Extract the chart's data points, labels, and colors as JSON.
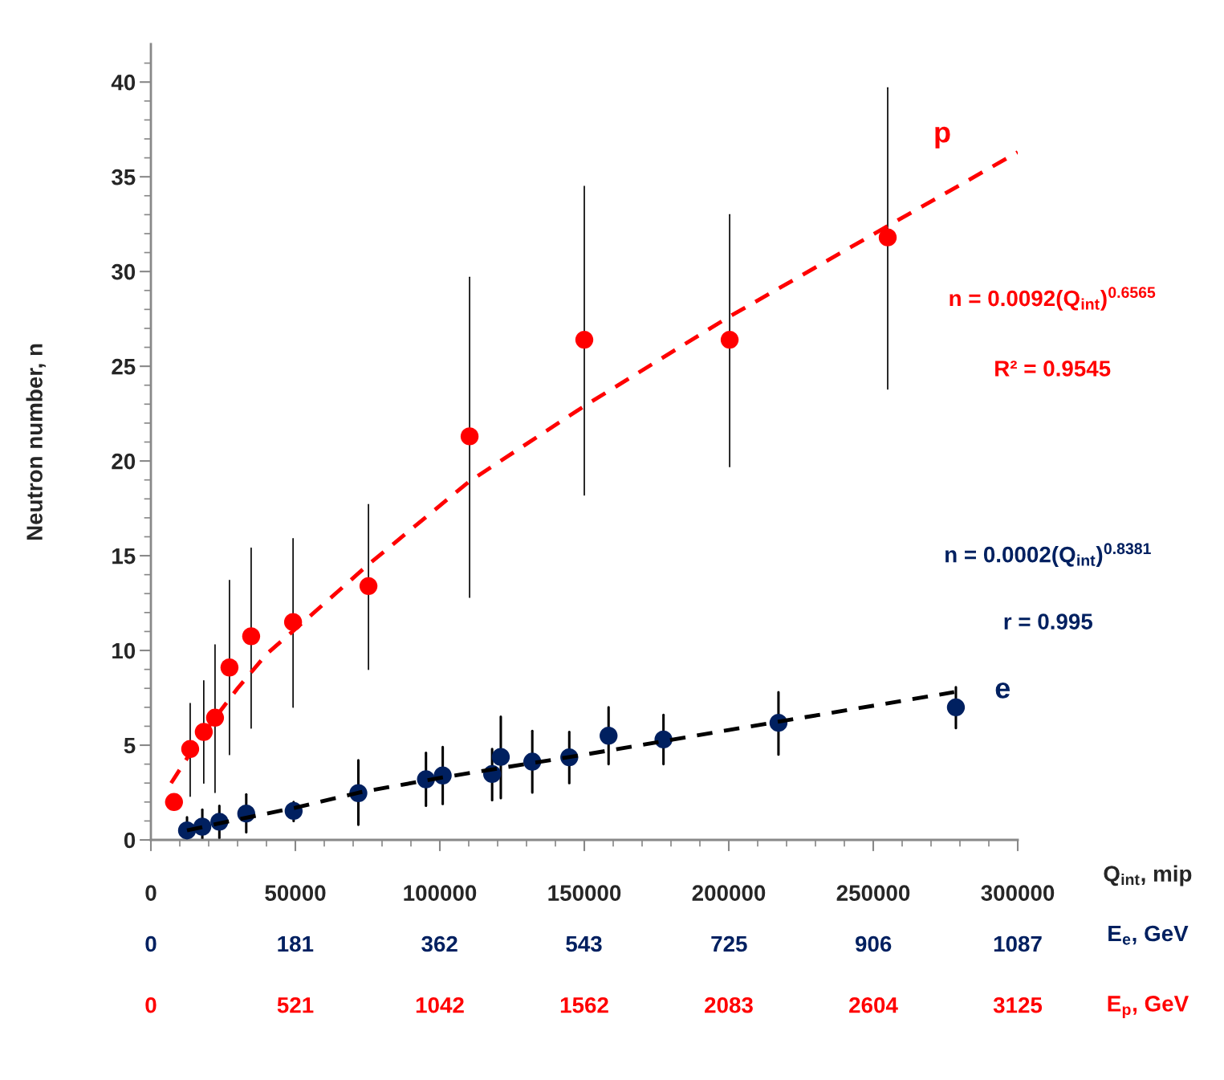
{
  "chart_data": {
    "type": "scatter",
    "ylabel": "Neutron number, n",
    "xlabel": "Q$_{int}$, mip",
    "x2label": "E$_{e}$, GeV",
    "xlim": [
      0,
      300000
    ],
    "ylim": [
      0,
      42
    ],
    "xticks": [
      0,
      {
        "value": 10000,
        "label": null
      },
      {
        "value": 20000,
        "label": null
      },
      {
        "value": 30000,
        "label": null
      },
      {
        "value": 40000,
        "label": null
      },
      50000,
      {
        "value": 60000,
        "label": null
      },
      {
        "value": 70000,
        "label": null
      },
      {
        "value": 80000,
        "label": null
      },
      {
        "value": 90000,
        "label": null
      },
      100000,
      {
        "value": 110000,
        "label": null
      },
      {
        "value": 120000,
        "label": null
      },
      {
        "value": 130000,
        "label": null
      },
      {
        "value": 140000,
        "label": null
      },
      150000,
      {
        "value": 160000,
        "label": null
      },
      {
        "value": 170000,
        "label": null
      },
      {
        "value": 180000,
        "label": null
      },
      {
        "value": 190000,
        "label": null
      },
      200000,
      {
        "value": 210000,
        "label": null
      },
      {
        "value": 220000,
        "label": null
      },
      {
        "value": 230000,
        "label": null
      },
      {
        "value": 240000,
        "label": null
      },
      250000,
      {
        "value": 260000,
        "label": null
      },
      {
        "value": 270000,
        "label": null
      },
      {
        "value": 280000,
        "label": null
      },
      {
        "value": 290000,
        "label": null
      },
      300000
    ],
    "yticks": [
      0,
      {
        "value": 1,
        "label": null
      },
      {
        "value": 2,
        "label": null
      },
      {
        "value": 3,
        "label": null
      },
      {
        "value": 4,
        "label": null
      },
      5,
      {
        "value": 6,
        "label": null
      },
      {
        "value": 7,
        "label": null
      },
      {
        "value": 8,
        "label": null
      },
      {
        "value": 9,
        "label": null
      },
      10,
      {
        "value": 11,
        "label": null
      },
      {
        "value": 12,
        "label": null
      },
      {
        "value": 13,
        "label": null
      },
      {
        "value": 14,
        "label": null
      },
      15,
      {
        "value": 16,
        "label": null
      },
      {
        "value": 17,
        "label": null
      },
      {
        "value": 18,
        "label": null
      },
      {
        "value": 19,
        "label": null
      },
      20,
      {
        "value": 21,
        "label": null
      },
      {
        "value": 22,
        "label": null
      },
      {
        "value": 23,
        "label": null
      },
      {
        "value": 24,
        "label": null
      },
      25,
      {
        "value": 26,
        "label": null
      },
      {
        "value": 27,
        "label": null
      },
      {
        "value": 28,
        "label": null
      },
      {
        "value": 29,
        "label": null
      },
      30,
      {
        "value": 31,
        "label": null
      },
      {
        "value": 32,
        "label": null
      },
      {
        "value": 33,
        "label": null
      },
      {
        "value": 34,
        "label": null
      },
      35,
      {
        "value": 36,
        "label": null
      },
      {
        "value": 37,
        "label": null
      },
      {
        "value": 38,
        "label": null
      },
      {
        "value": 39,
        "label": null
      },
      40,
      {
        "value": 41,
        "label": null
      }
    ],
    "x2lim": [
      0,
      1087
    ],
    "x2ticks": [
      0,
      181,
      362,
      543,
      725,
      906,
      1087
    ],
    "grid": false,
    "legend": false,
    "series": [
      {
        "name": "p",
        "marker": "circle",
        "color": "#ff0000",
        "x": [
          8000,
          13600,
          18300,
          22200,
          27200,
          34700,
          49200,
          75300,
          110300,
          150000,
          200300,
          255000
        ],
        "values": [
          2.0,
          4.8,
          5.7,
          6.45,
          9.1,
          10.75,
          11.5,
          13.4,
          21.3,
          26.4,
          26.4,
          31.8
        ],
        "errors": [
          null,
          [
            2.3,
            7.2
          ],
          [
            3.0,
            8.4
          ],
          [
            2.5,
            10.3
          ],
          [
            4.5,
            13.7
          ],
          [
            5.9,
            15.4
          ],
          [
            7.0,
            15.9
          ],
          [
            9.0,
            17.7
          ],
          [
            12.8,
            29.7
          ],
          [
            18.2,
            34.5
          ],
          [
            19.7,
            33.0
          ],
          [
            23.8,
            39.7
          ]
        ]
      },
      {
        "type": "line",
        "line_style": "dashed",
        "marker": "none",
        "color": "#ff0000",
        "x": [
          7000,
          15000,
          22000,
          30000,
          40000,
          52000,
          75000,
          110000,
          150000,
          200000,
          255000,
          300000
        ],
        "values": [
          3.0,
          4.9,
          6.4,
          8.0,
          9.8,
          11.4,
          14.5,
          18.9,
          22.9,
          27.6,
          32.4,
          36.3
        ]
      },
      {
        "name": "e",
        "marker": "circle",
        "color": "#002060",
        "x": [
          12500,
          17800,
          23700,
          33000,
          49400,
          71800,
          95200,
          101000,
          118100,
          121100,
          132000,
          144800,
          158400,
          177400,
          217200,
          278600
        ],
        "values": [
          0.5,
          0.7,
          0.96,
          1.39,
          1.53,
          2.47,
          3.2,
          3.4,
          3.48,
          4.38,
          4.13,
          4.36,
          5.5,
          5.3,
          6.18,
          7.0
        ],
        "errors": [
          [
            0,
            1.2
          ],
          [
            0,
            1.6
          ],
          [
            0.1,
            1.8
          ],
          [
            0.4,
            2.4
          ],
          [
            1.0,
            2.0
          ],
          [
            0.8,
            4.2
          ],
          [
            1.8,
            4.6
          ],
          [
            1.9,
            4.9
          ],
          [
            2.1,
            4.8
          ],
          [
            2.2,
            6.5
          ],
          [
            2.5,
            5.75
          ],
          [
            3.0,
            5.7
          ],
          [
            4.0,
            7.0
          ],
          [
            4.0,
            6.6
          ],
          [
            4.5,
            7.8
          ],
          [
            5.9,
            8.06
          ]
        ]
      },
      {
        "type": "line",
        "line_style": "dashed",
        "marker": "none",
        "color": "#000000",
        "x": [
          12500,
          25000,
          50000,
          72000,
          101000,
          150000,
          200000,
          278000
        ],
        "values": [
          0.5,
          0.92,
          1.7,
          2.5,
          3.3,
          4.5,
          5.8,
          7.8
        ]
      }
    ],
    "annotations": [
      "n = 0.0092(Q$_{int}$)$^{0.6565}$",
      "R² = 0.9545",
      "n = 0.0002(Q$_{int}$)$^{0.8381}$",
      "r = 0.995",
      "0",
      "521",
      "1042",
      "1562",
      "2083",
      "2604",
      "3125",
      "E$_{p}$, GeV"
    ]
  }
}
